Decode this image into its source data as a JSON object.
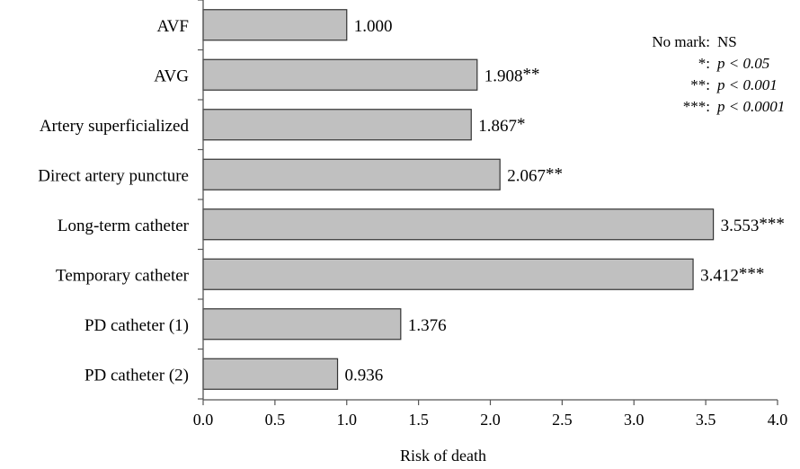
{
  "chart_data": {
    "type": "bar",
    "orientation": "horizontal",
    "categories": [
      "AVF",
      "AVG",
      "Artery superficialized",
      "Direct artery puncture",
      "Long-term catheter",
      "Temporary catheter",
      "PD catheter (1)",
      "PD catheter (2)"
    ],
    "values": [
      1.0,
      1.908,
      1.867,
      2.067,
      3.553,
      3.412,
      1.376,
      0.936
    ],
    "value_labels": [
      "1.000",
      "1.908",
      "1.867",
      "2.067",
      "3.553",
      "3.412",
      "1.376",
      "0.936"
    ],
    "significance_marks": [
      "",
      "**",
      "*",
      "**",
      "***",
      "***",
      "",
      ""
    ],
    "xlabel": "Risk of death",
    "xlim": [
      0.0,
      4.0
    ],
    "xticks": [
      "0.0",
      "0.5",
      "1.0",
      "1.5",
      "2.0",
      "2.5",
      "3.0",
      "3.5",
      "4.0"
    ],
    "grid": false,
    "bar_color": "#c0c0c0",
    "legend": {
      "placement": "top-right",
      "entries": [
        {
          "mark": "No mark:",
          "meaning": "NS",
          "italic": false
        },
        {
          "mark": "*:",
          "meaning": "p < 0.05",
          "italic": true
        },
        {
          "mark": "**:",
          "meaning": "p < 0.001",
          "italic": true
        },
        {
          "mark": "***:",
          "meaning": "p < 0.0001",
          "italic": true
        }
      ]
    }
  }
}
